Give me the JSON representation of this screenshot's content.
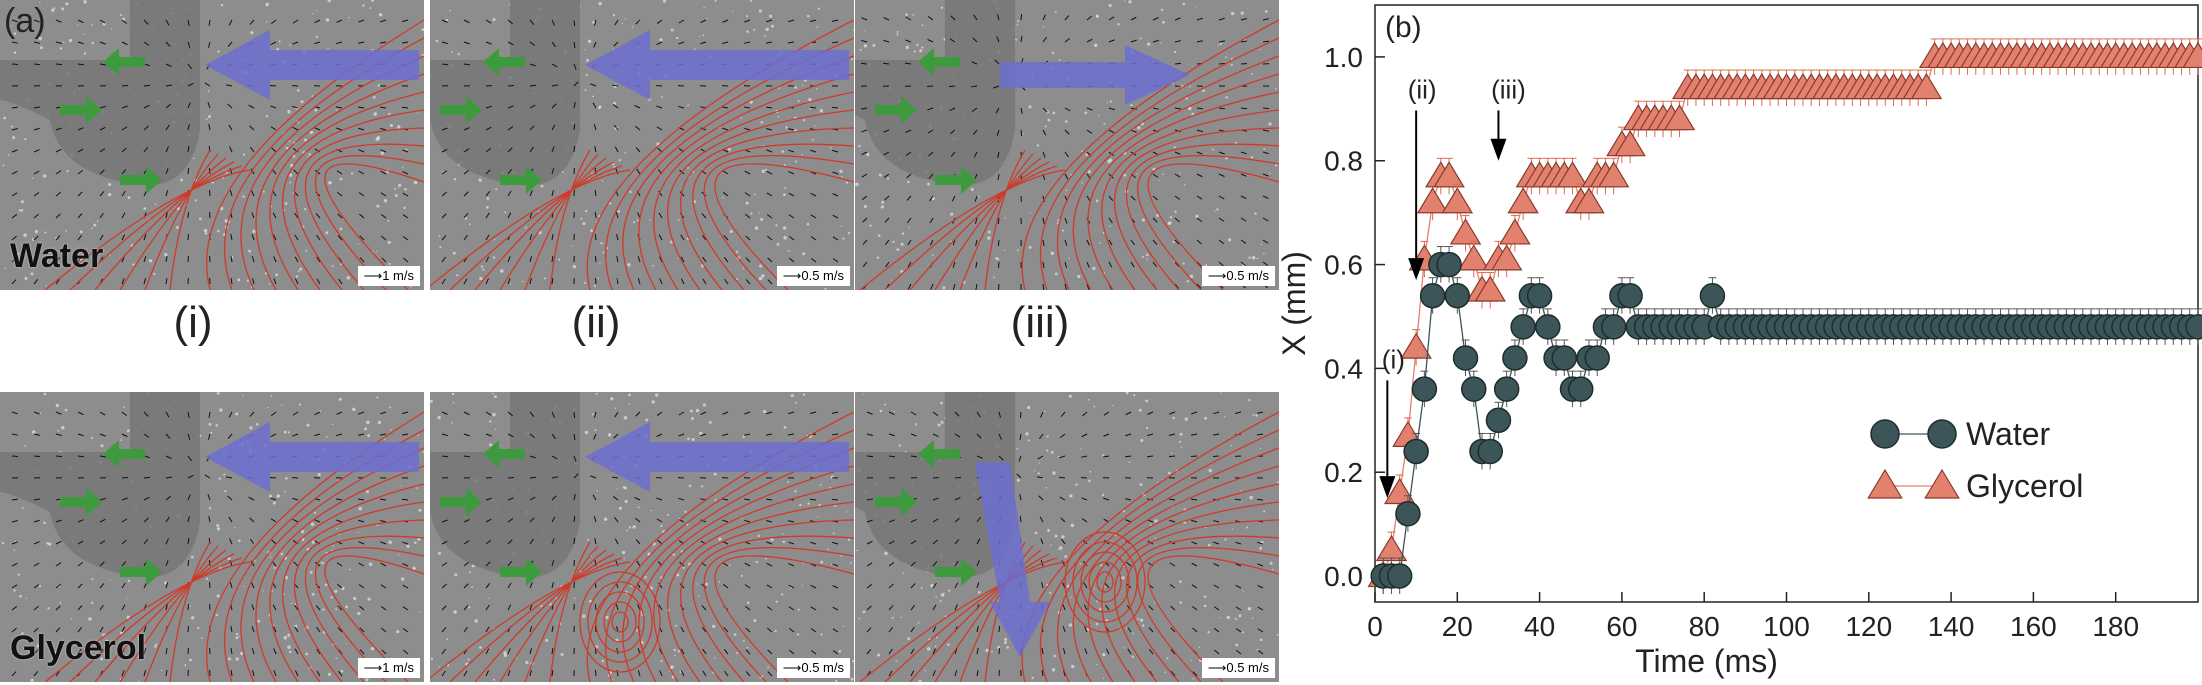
{
  "panel_a": {
    "tag": "(a)",
    "column_labels": [
      "(i)",
      "(ii)",
      "(iii)"
    ],
    "rows": [
      {
        "fluid": "Water",
        "scales": [
          "1 m/s",
          "0.5 m/s",
          "0.5 m/s"
        ]
      },
      {
        "fluid": "Glycerol",
        "scales": [
          "1 m/s",
          "0.5 m/s",
          "0.5 m/s"
        ]
      }
    ],
    "colors": {
      "arrow_large": "#6b6fd0",
      "arrow_small": "#3d9a3d",
      "streamline": "#d03a2a",
      "background": "#8d8d8d"
    }
  },
  "chart_data": {
    "type": "scatter",
    "tag": "(b)",
    "xlabel": "Time (ms)",
    "ylabel": "X (mm)",
    "xlim": [
      0,
      200
    ],
    "ylim": [
      -0.05,
      1.1
    ],
    "xticks": [
      "0",
      "20",
      "40",
      "60",
      "80",
      "100",
      "120",
      "140",
      "160",
      "180"
    ],
    "yticks": [
      "0.0",
      "0.2",
      "0.4",
      "0.6",
      "0.8",
      "1.0"
    ],
    "legend_position": "right-middle",
    "annotations": [
      {
        "text": "(i)",
        "x": 3,
        "y": 0.15
      },
      {
        "text": "(ii)",
        "x": 10,
        "y": 0.57
      },
      {
        "text": "(iii)",
        "x": 30,
        "y": 0.8
      }
    ],
    "series": [
      {
        "name": "Water",
        "marker": "circle",
        "color": "#3c5558",
        "x": [
          2,
          4,
          6,
          8,
          10,
          12,
          14,
          16,
          18,
          20,
          22,
          24,
          26,
          28,
          30,
          32,
          34,
          36,
          38,
          40,
          42,
          44,
          46,
          48,
          50,
          52,
          54,
          56,
          58,
          60,
          62,
          64,
          66,
          68,
          70,
          72,
          74,
          76,
          78,
          80,
          82,
          84,
          86,
          88,
          90,
          92,
          94,
          96,
          98,
          100,
          102,
          104,
          106,
          108,
          110,
          112,
          114,
          116,
          118,
          120,
          122,
          124,
          126,
          128,
          130,
          132,
          134,
          136,
          138,
          140,
          142,
          144,
          146,
          148,
          150,
          152,
          154,
          156,
          158,
          160,
          162,
          164,
          166,
          168,
          170,
          172,
          174,
          176,
          178,
          180,
          182,
          184,
          186,
          188,
          190,
          192,
          194,
          196,
          198,
          200
        ],
        "y": [
          0,
          0,
          0,
          0.12,
          0.24,
          0.36,
          0.54,
          0.6,
          0.6,
          0.54,
          0.42,
          0.36,
          0.24,
          0.24,
          0.3,
          0.36,
          0.42,
          0.48,
          0.54,
          0.54,
          0.48,
          0.42,
          0.42,
          0.36,
          0.36,
          0.42,
          0.42,
          0.48,
          0.48,
          0.54,
          0.54,
          0.48,
          0.48,
          0.48,
          0.48,
          0.48,
          0.48,
          0.48,
          0.48,
          0.48,
          0.54,
          0.48,
          0.48,
          0.48,
          0.48,
          0.48,
          0.48,
          0.48,
          0.48,
          0.48,
          0.48,
          0.48,
          0.48,
          0.48,
          0.48,
          0.48,
          0.48,
          0.48,
          0.48,
          0.48,
          0.48,
          0.48,
          0.48,
          0.48,
          0.48,
          0.48,
          0.48,
          0.48,
          0.48,
          0.48,
          0.48,
          0.48,
          0.48,
          0.48,
          0.48,
          0.48,
          0.48,
          0.48,
          0.48,
          0.48,
          0.48,
          0.48,
          0.48,
          0.48,
          0.48,
          0.48,
          0.48,
          0.48,
          0.48,
          0.48,
          0.48,
          0.48,
          0.48,
          0.48,
          0.48,
          0.48,
          0.48,
          0.48,
          0.48,
          0.48
        ]
      },
      {
        "name": "Glycerol",
        "marker": "triangle",
        "color": "#e2826e",
        "x": [
          2,
          4,
          6,
          8,
          10,
          12,
          14,
          16,
          18,
          20,
          22,
          24,
          26,
          28,
          30,
          32,
          34,
          36,
          38,
          40,
          42,
          44,
          46,
          48,
          50,
          52,
          54,
          56,
          58,
          60,
          62,
          64,
          66,
          68,
          70,
          72,
          74,
          76,
          78,
          80,
          82,
          84,
          86,
          88,
          90,
          92,
          94,
          96,
          98,
          100,
          102,
          104,
          106,
          108,
          110,
          112,
          114,
          116,
          118,
          120,
          122,
          124,
          126,
          128,
          130,
          132,
          134,
          136,
          138,
          140,
          142,
          144,
          146,
          148,
          150,
          152,
          154,
          156,
          158,
          160,
          162,
          164,
          166,
          168,
          170,
          172,
          174,
          176,
          178,
          180,
          182,
          184,
          186,
          188,
          190,
          192,
          194,
          196,
          198,
          200
        ],
        "y": [
          0,
          0.05,
          0.16,
          0.27,
          0.44,
          0.61,
          0.72,
          0.77,
          0.77,
          0.72,
          0.66,
          0.61,
          0.55,
          0.55,
          0.61,
          0.61,
          0.66,
          0.72,
          0.77,
          0.77,
          0.77,
          0.77,
          0.77,
          0.77,
          0.72,
          0.72,
          0.77,
          0.77,
          0.77,
          0.83,
          0.83,
          0.88,
          0.88,
          0.88,
          0.88,
          0.88,
          0.88,
          0.94,
          0.94,
          0.94,
          0.94,
          0.94,
          0.94,
          0.94,
          0.94,
          0.94,
          0.94,
          0.94,
          0.94,
          0.94,
          0.94,
          0.94,
          0.94,
          0.94,
          0.94,
          0.94,
          0.94,
          0.94,
          0.94,
          0.94,
          0.94,
          0.94,
          0.94,
          0.94,
          0.94,
          0.94,
          0.94,
          1.0,
          1.0,
          1.0,
          1.0,
          1.0,
          1.0,
          1.0,
          1.0,
          1.0,
          1.0,
          1.0,
          1.0,
          1.0,
          1.0,
          1.0,
          1.0,
          1.0,
          1.0,
          1.0,
          1.0,
          1.0,
          1.0,
          1.0,
          1.0,
          1.0,
          1.0,
          1.0,
          1.0,
          1.0,
          1.0,
          1.0,
          1.0,
          1.0
        ]
      }
    ]
  }
}
